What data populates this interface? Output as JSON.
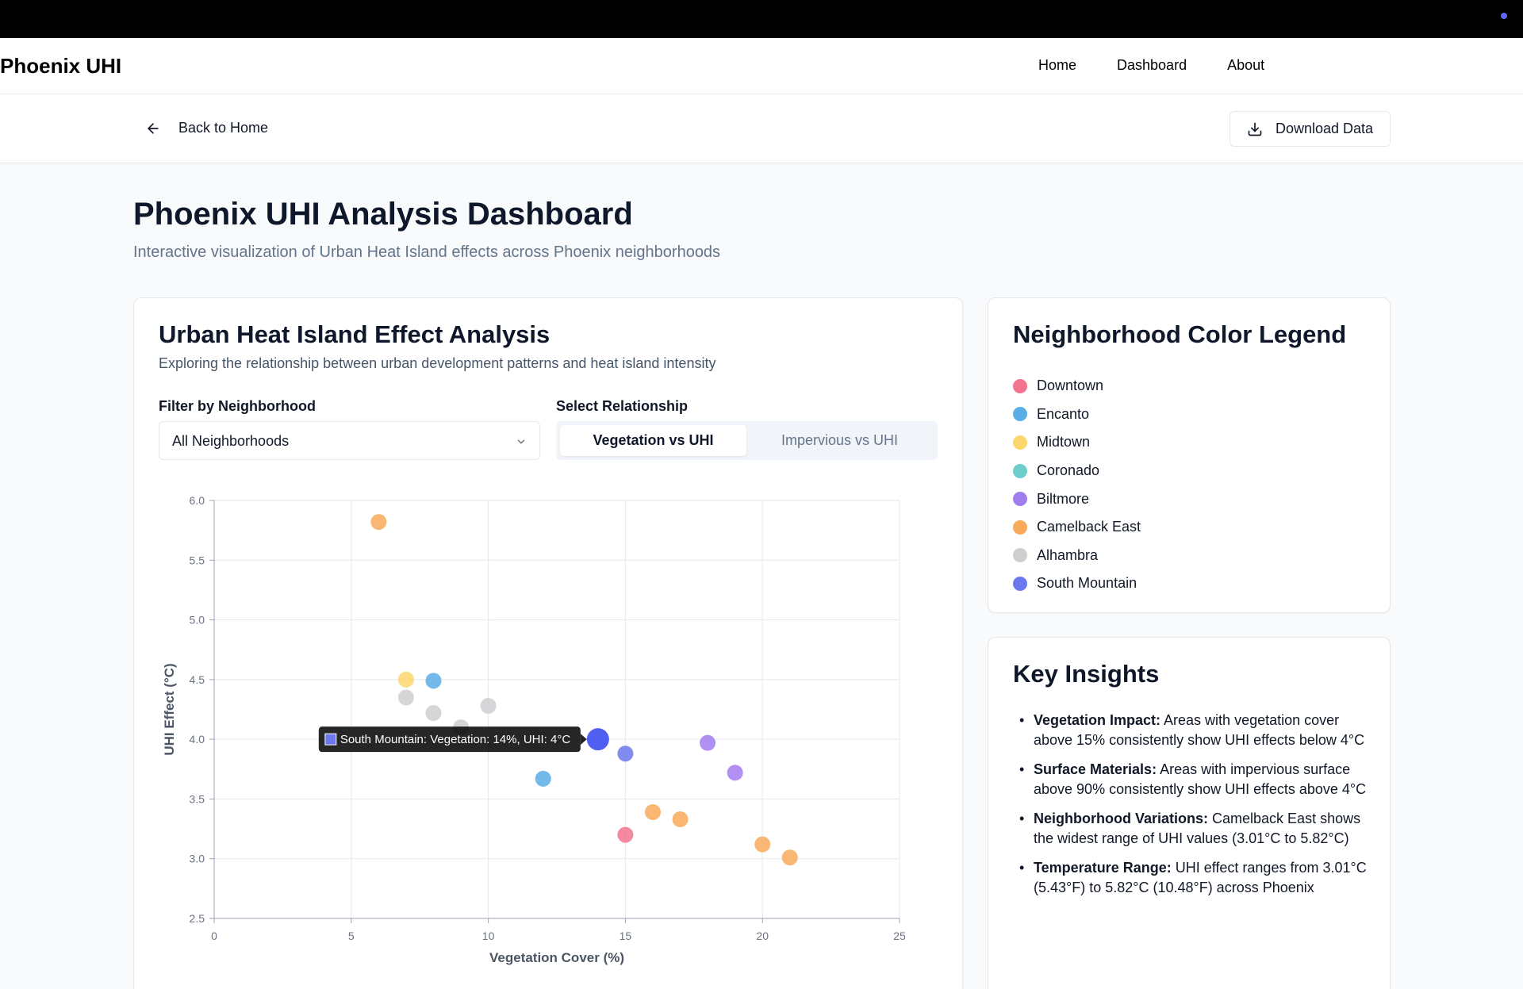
{
  "nav": {
    "brand": "Phoenix UHI",
    "links": [
      "Home",
      "Dashboard",
      "About"
    ]
  },
  "subbar": {
    "back_label": "Back to Home",
    "download_label": "Download Data"
  },
  "page": {
    "title": "Phoenix UHI Analysis Dashboard",
    "subtitle": "Interactive visualization of Urban Heat Island effects across Phoenix neighborhoods"
  },
  "analysis": {
    "title": "Urban Heat Island Effect Analysis",
    "subtitle": "Exploring the relationship between urban development patterns and heat island intensity",
    "filter_label": "Filter by Neighborhood",
    "filter_value": "All Neighborhoods",
    "relationship_label": "Select Relationship",
    "relationship_options": [
      "Vegetation vs UHI",
      "Impervious vs UHI"
    ],
    "relationship_selected": "Vegetation vs UHI"
  },
  "legend": {
    "title": "Neighborhood Color Legend",
    "items": [
      {
        "name": "Downtown",
        "color": "#f2748f"
      },
      {
        "name": "Encanto",
        "color": "#5aaee8"
      },
      {
        "name": "Midtown",
        "color": "#fcd76d"
      },
      {
        "name": "Coronado",
        "color": "#6dcfca"
      },
      {
        "name": "Biltmore",
        "color": "#a27df0"
      },
      {
        "name": "Camelback East",
        "color": "#f8aa5a"
      },
      {
        "name": "Alhambra",
        "color": "#cfcfd1"
      },
      {
        "name": "South Mountain",
        "color": "#6b78ee"
      }
    ]
  },
  "insights": {
    "title": "Key Insights",
    "items": [
      {
        "head": "Vegetation Impact:",
        "text": "Areas with vegetation cover above 15% consistently show UHI effects below 4°C"
      },
      {
        "head": "Surface Materials:",
        "text": "Areas with impervious surface above 90% consistently show UHI effects above 4°C"
      },
      {
        "head": "Neighborhood Variations:",
        "text": "Camelback East shows the widest range of UHI values (3.01°C to 5.82°C)"
      },
      {
        "head": "Temperature Range:",
        "text": "UHI effect ranges from 3.01°C (5.43°F) to 5.82°C (10.48°F) across Phoenix"
      }
    ]
  },
  "chart_data": {
    "type": "scatter",
    "xlabel": "Vegetation Cover (%)",
    "ylabel": "UHI Effect (°C)",
    "xlim": [
      0,
      25
    ],
    "ylim": [
      2.5,
      6.0
    ],
    "x_ticks": [
      "0",
      "5",
      "10",
      "15",
      "20",
      "25"
    ],
    "y_ticks": [
      "2.5",
      "3.0",
      "3.5",
      "4.0",
      "4.5",
      "5.0",
      "5.5",
      "6.0"
    ],
    "grid": true,
    "tooltip": {
      "text": "South Mountain: Vegetation: 14%, UHI: 4°C",
      "color": "#6b78ee"
    },
    "points": [
      {
        "neighborhood": "Camelback East",
        "x": 6,
        "y": 5.82,
        "color": "#f8aa5a"
      },
      {
        "neighborhood": "Midtown",
        "x": 7,
        "y": 4.5,
        "color": "#fcd76d"
      },
      {
        "neighborhood": "Encanto",
        "x": 8,
        "y": 4.49,
        "color": "#5aaee8"
      },
      {
        "neighborhood": "Alhambra",
        "x": 7,
        "y": 4.35,
        "color": "#cfcfd1"
      },
      {
        "neighborhood": "Alhambra",
        "x": 8,
        "y": 4.22,
        "color": "#cfcfd1"
      },
      {
        "neighborhood": "Alhambra",
        "x": 10,
        "y": 4.28,
        "color": "#cfcfd1"
      },
      {
        "neighborhood": "Alhambra",
        "x": 9,
        "y": 4.1,
        "color": "#cfcfd1"
      },
      {
        "neighborhood": "South Mountain",
        "x": 14,
        "y": 4.0,
        "color": "#4f5ff0",
        "highlight": true
      },
      {
        "neighborhood": "South Mountain",
        "x": 15,
        "y": 3.88,
        "color": "#6b78ee"
      },
      {
        "neighborhood": "Biltmore",
        "x": 18,
        "y": 3.97,
        "color": "#a27df0"
      },
      {
        "neighborhood": "Biltmore",
        "x": 19,
        "y": 3.72,
        "color": "#a27df0"
      },
      {
        "neighborhood": "Encanto",
        "x": 12,
        "y": 3.67,
        "color": "#5aaee8"
      },
      {
        "neighborhood": "Camelback East",
        "x": 16,
        "y": 3.39,
        "color": "#f8aa5a"
      },
      {
        "neighborhood": "Camelback East",
        "x": 17,
        "y": 3.33,
        "color": "#f8aa5a"
      },
      {
        "neighborhood": "Downtown",
        "x": 15,
        "y": 3.2,
        "color": "#f2748f"
      },
      {
        "neighborhood": "Camelback East",
        "x": 20,
        "y": 3.12,
        "color": "#f8aa5a"
      },
      {
        "neighborhood": "Camelback East",
        "x": 21,
        "y": 3.01,
        "color": "#f8aa5a"
      }
    ]
  }
}
